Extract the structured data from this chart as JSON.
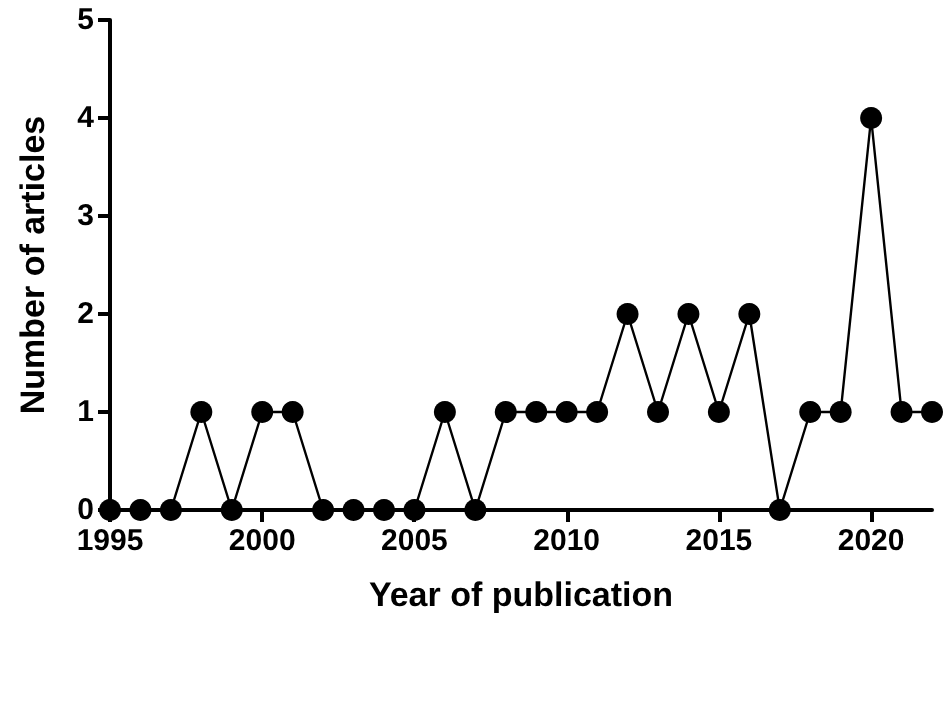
{
  "chart_data": {
    "type": "line",
    "xlabel": "Year of publication",
    "ylabel": "Number of articles",
    "x": [
      1995,
      1996,
      1997,
      1998,
      1999,
      2000,
      2001,
      2002,
      2003,
      2004,
      2005,
      2006,
      2007,
      2008,
      2009,
      2010,
      2011,
      2012,
      2013,
      2014,
      2015,
      2016,
      2017,
      2018,
      2019,
      2020,
      2021,
      2022
    ],
    "series": [
      {
        "color": "#000000",
        "values": [
          0,
          0,
          0,
          1,
          0,
          1,
          1,
          0,
          0,
          0,
          0,
          1,
          0,
          1,
          1,
          1,
          1,
          2,
          1,
          2,
          1,
          2,
          0,
          1,
          1,
          4,
          1,
          1
        ]
      }
    ],
    "xlim": [
      1995,
      2022
    ],
    "xticks": [
      1995,
      2000,
      2005,
      2010,
      2015,
      2020
    ],
    "ylim": [
      0,
      5
    ],
    "yticks": [
      0,
      1,
      2,
      3,
      4,
      5
    ],
    "grid": false,
    "marker": "circle",
    "line_style": "solid"
  }
}
